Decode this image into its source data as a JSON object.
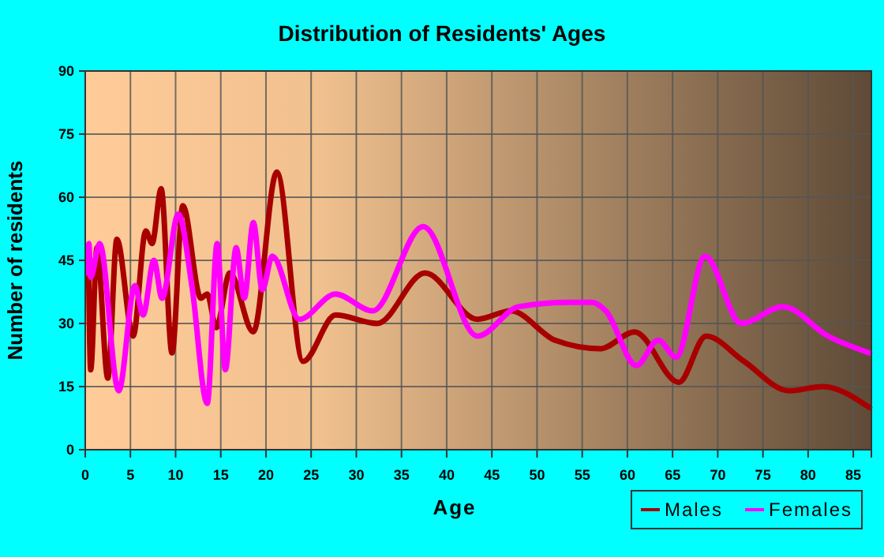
{
  "chart_data": {
    "type": "line",
    "title": "Distribution of Residents' Ages",
    "xlabel": "Age",
    "ylabel": "Number of residents",
    "xlim": [
      0,
      87
    ],
    "xticks": [
      0,
      5,
      10,
      15,
      20,
      25,
      30,
      35,
      40,
      45,
      50,
      55,
      60,
      65,
      70,
      75,
      80,
      85
    ],
    "ylim": [
      0,
      90
    ],
    "yticks": [
      0,
      15,
      30,
      45,
      60,
      75,
      90
    ],
    "grid": true,
    "legend": "bottom right",
    "marker": "none",
    "line_style": "solid",
    "series": [
      {
        "name": "Males",
        "color": "#a80000",
        "x": [
          0.35,
          0.6,
          1.3,
          2.5,
          3.5,
          5.3,
          6.7,
          7.4,
          8.4,
          9.6,
          10.8,
          12.8,
          13.5,
          14.5,
          16,
          18.6,
          21.2,
          24.1,
          27.7,
          32.3,
          37.6,
          43.4,
          47.1,
          52,
          57,
          60.8,
          65.7,
          68.7,
          72.9,
          77.9,
          81.6,
          86.8
        ],
        "values": [
          46,
          19,
          48,
          17,
          50,
          27,
          52,
          49,
          62,
          23,
          58,
          36,
          37,
          29,
          42,
          28,
          66,
          21,
          32,
          30,
          42,
          31,
          33,
          26,
          24,
          28,
          16,
          27,
          21,
          14,
          15,
          10
        ]
      },
      {
        "name": "Females",
        "color": "#ff00ff",
        "x": [
          0.2,
          0.4,
          0.6,
          1.6,
          3.7,
          5.5,
          6.4,
          7.6,
          8.5,
          10.3,
          11.8,
          13.5,
          14.6,
          15.5,
          16.7,
          17.6,
          18.6,
          19.6,
          20.7,
          23.7,
          27.7,
          31.8,
          37.4,
          43.4,
          48,
          53.7,
          56.1,
          57.6,
          61,
          63.4,
          65.4,
          68.6,
          72.6,
          77.2,
          82.2,
          86.8
        ],
        "values": [
          42,
          49,
          41,
          49,
          14,
          39,
          32,
          45,
          36,
          56,
          39,
          11,
          49,
          19,
          48,
          36,
          54,
          38,
          46,
          31,
          37,
          33,
          53,
          27,
          34,
          35,
          35,
          33,
          20,
          26,
          22,
          46,
          30,
          34,
          27,
          23
        ]
      }
    ]
  }
}
